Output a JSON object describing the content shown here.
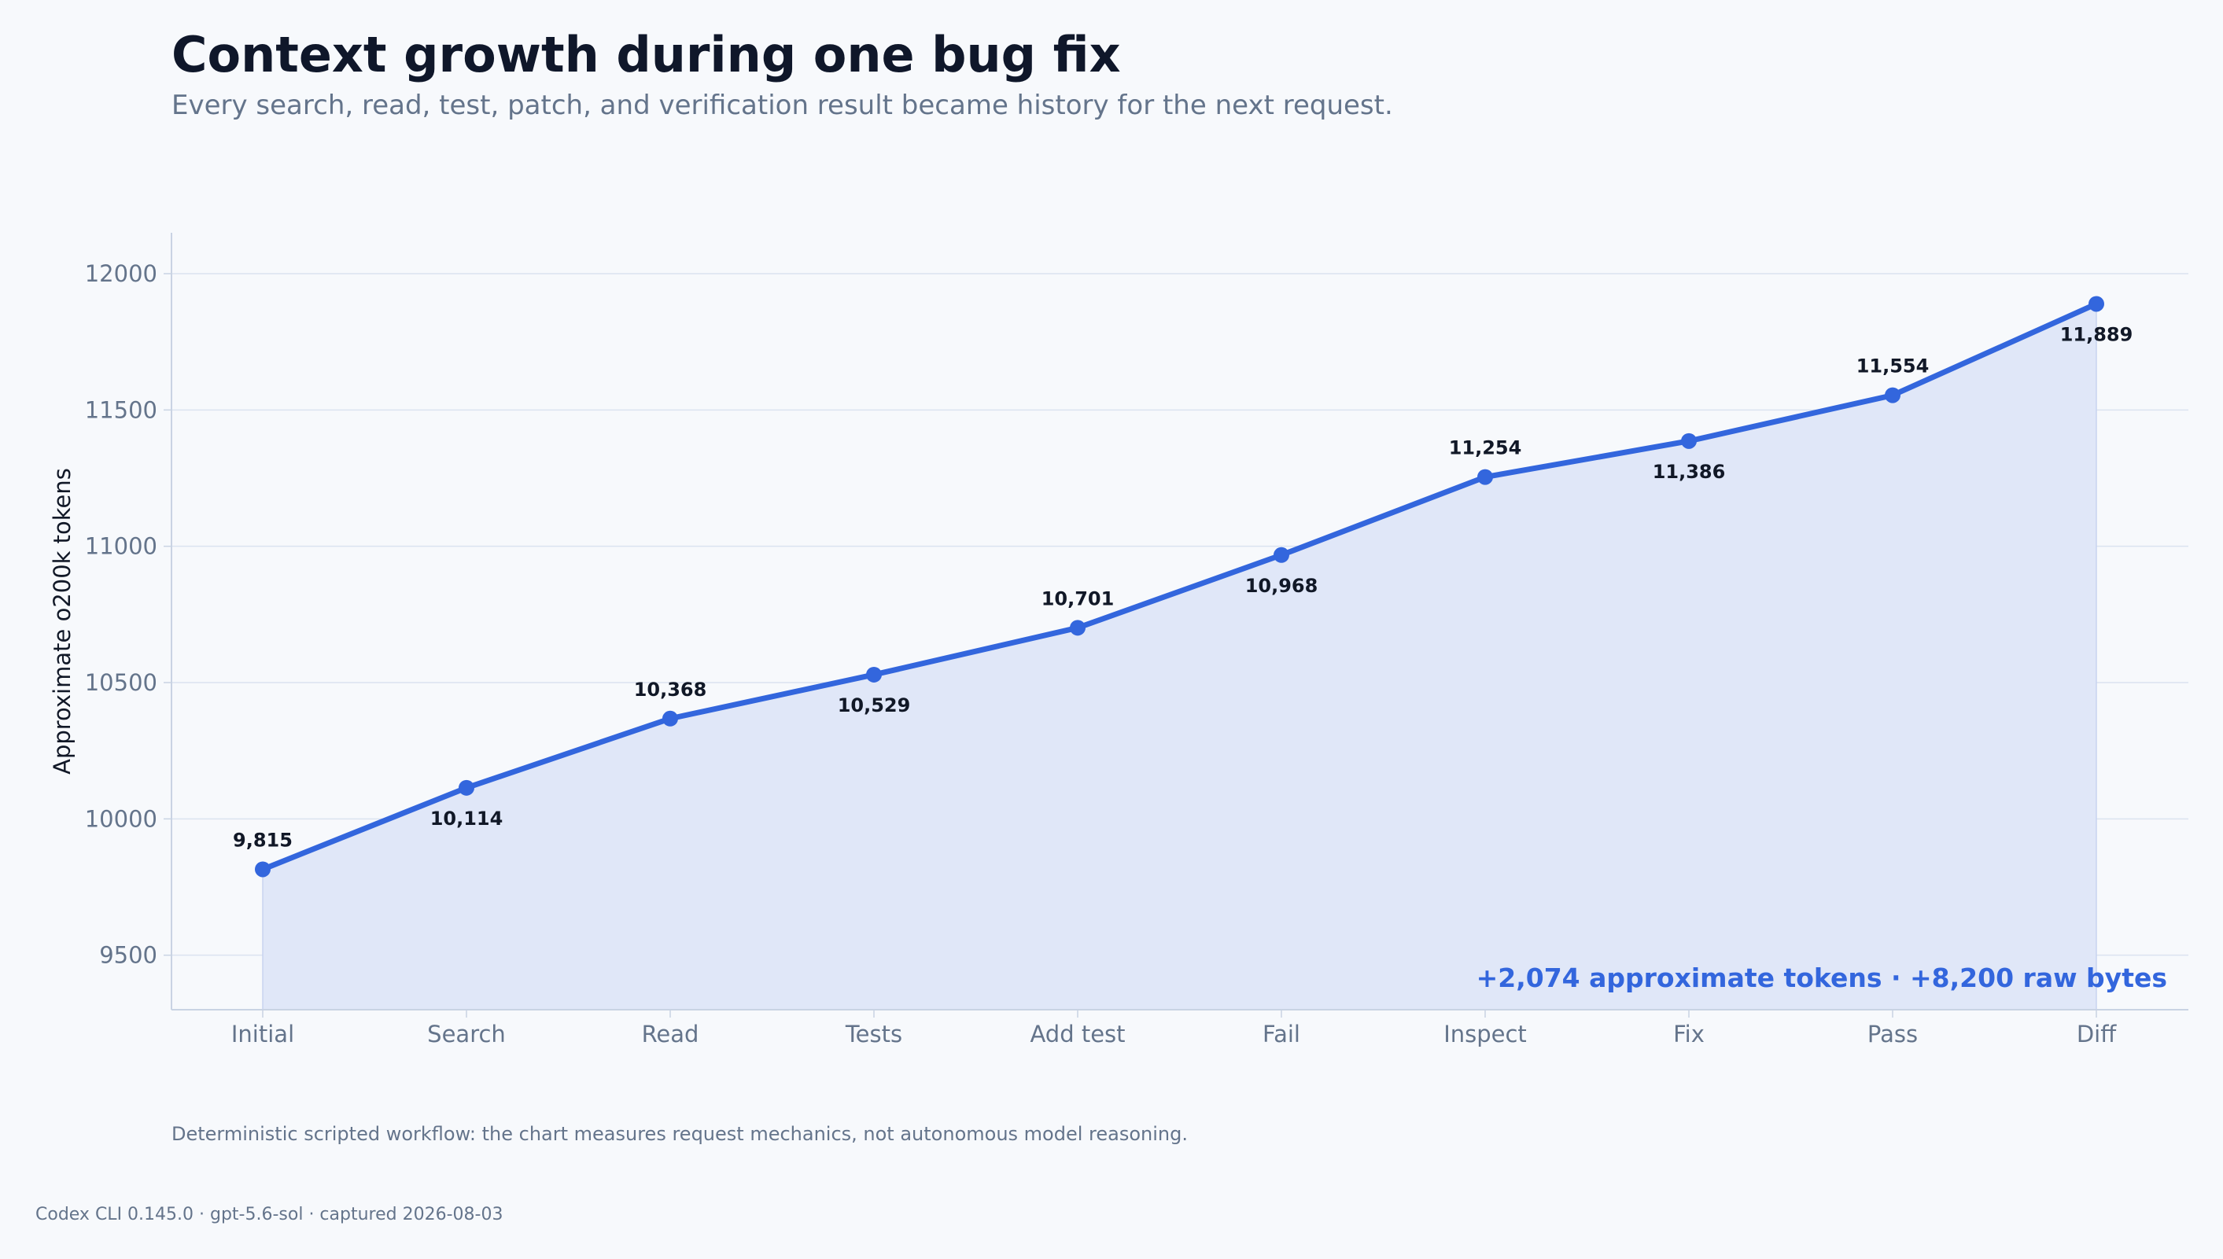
{
  "header": {
    "title": "Context growth during one bug fix",
    "subtitle": "Every search, read, test, patch, and verification result became history for the next request."
  },
  "chart_data": {
    "type": "area",
    "title": "Context growth during one bug fix",
    "subtitle": "Every search, read, test, patch, and verification result became history for the next request.",
    "xlabel": "",
    "ylabel": "Approximate o200k tokens",
    "categories": [
      "Initial",
      "Search",
      "Read",
      "Tests",
      "Add test",
      "Fail",
      "Inspect",
      "Fix",
      "Pass",
      "Diff"
    ],
    "values": [
      9815,
      10114,
      10368,
      10529,
      10701,
      10968,
      11254,
      11386,
      11554,
      11889
    ],
    "data_labels": [
      "9,815",
      "10,114",
      "10,368",
      "10,529",
      "10,701",
      "10,968",
      "11,254",
      "11,386",
      "11,554",
      "11,889"
    ],
    "ylim": [
      9300,
      12150
    ],
    "yticks": [
      9500,
      10000,
      10500,
      11000,
      11500,
      12000
    ],
    "grid": true,
    "annotation": "+2,074 approximate tokens · +8,200 raw bytes",
    "colors": {
      "line": "#3366dd",
      "fill": "#e0e7f8",
      "grid": "#dbe3f0",
      "axis": "#c9d3e3",
      "annotation": "#3366dd"
    }
  },
  "footer": {
    "note": "Deterministic scripted workflow: the chart measures request mechanics, not autonomous model reasoning.",
    "source": "Codex CLI 0.145.0 · gpt-5.6-sol · captured 2026-08-03"
  }
}
